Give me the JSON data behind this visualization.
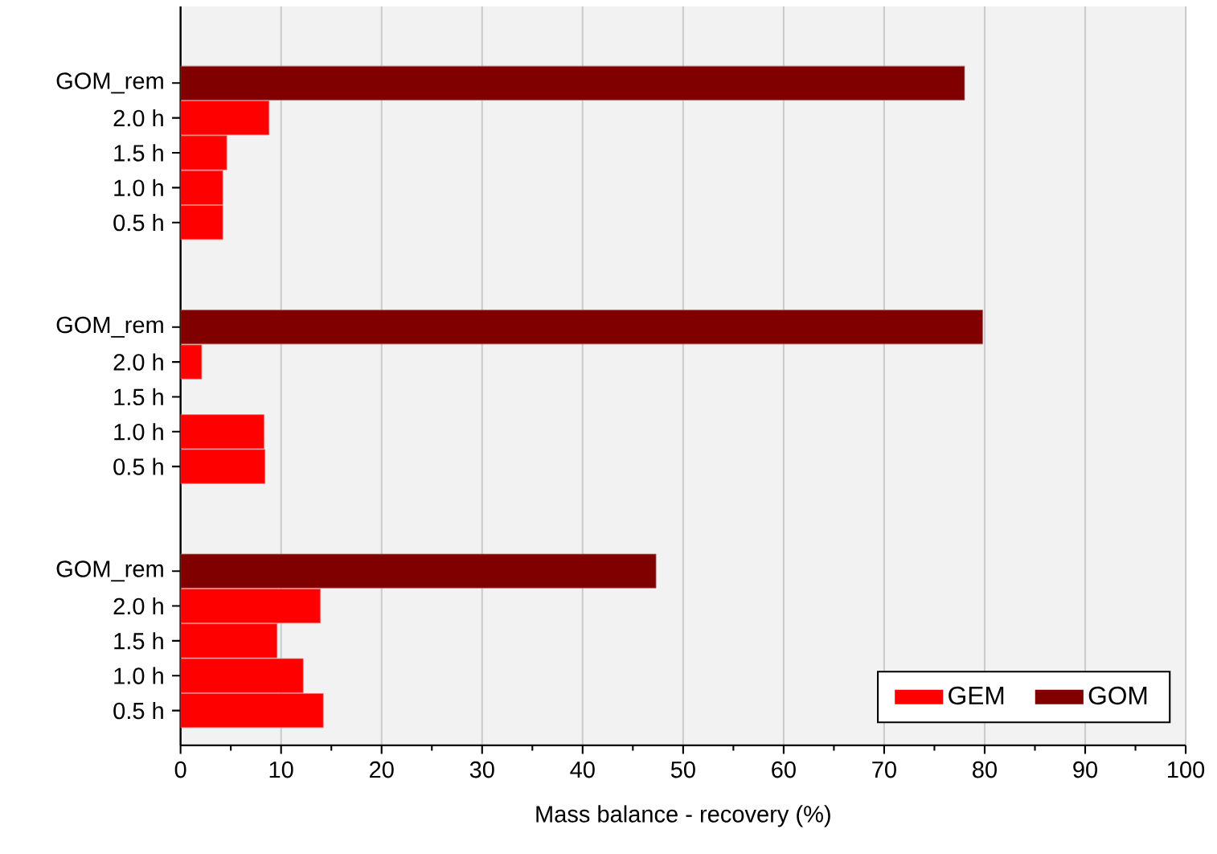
{
  "chart_data": {
    "type": "bar",
    "orientation": "horizontal",
    "xlabel": "Mass balance - recovery (%)",
    "categories": [
      "GOM_rem",
      "2.0 h",
      "1.5 h",
      "1.0 h",
      "0.5 h",
      null,
      null,
      "GOM_rem",
      "2.0 h",
      "1.5 h",
      "1.0 h",
      "0.5 h",
      null,
      null,
      "GOM_rem",
      "2.0 h",
      "1.5 h",
      "1.0 h",
      "0.5 h"
    ],
    "series": [
      {
        "name": "GEM",
        "color": "#ff0000",
        "values": [
          null,
          8.8,
          4.6,
          4.2,
          4.2,
          null,
          null,
          null,
          2.1,
          null,
          8.3,
          8.4,
          null,
          null,
          null,
          13.9,
          9.6,
          12.2,
          14.2
        ]
      },
      {
        "name": "GOM",
        "color": "#800000",
        "values": [
          78.0,
          null,
          null,
          null,
          null,
          null,
          null,
          79.8,
          null,
          null,
          null,
          null,
          null,
          null,
          47.3,
          null,
          null,
          null,
          null
        ]
      }
    ],
    "xlim": [
      0,
      100
    ],
    "xticks": [
      0,
      10,
      20,
      30,
      40,
      50,
      60,
      70,
      80,
      90,
      100
    ],
    "grid": "x",
    "legend": "bottom right"
  }
}
